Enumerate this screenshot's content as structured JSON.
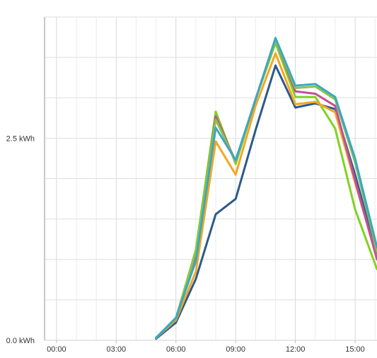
{
  "chart_data": {
    "type": "line",
    "title": "",
    "xlabel": "",
    "ylabel": "",
    "x_unit": "hours",
    "xlim": [
      -0.6,
      16.1
    ],
    "ylim": [
      0,
      4
    ],
    "x_tick_values": [
      0,
      3,
      6,
      9,
      12,
      15
    ],
    "x_tick_labels": [
      "00:00",
      "03:00",
      "06:00",
      "09:00",
      "12:00",
      "15:00"
    ],
    "y_tick_values": [
      0,
      2.5
    ],
    "y_tick_labels": [
      "0.0 kWh",
      "2.5 kWh"
    ],
    "grid": true,
    "legend": "none",
    "x": [
      5,
      6,
      7,
      8,
      9,
      10,
      11,
      12,
      13,
      14,
      15,
      16.1
    ],
    "series": [
      {
        "color": "#2c5a8a",
        "values": [
          0.02,
          0.22,
          0.76,
          1.56,
          1.75,
          2.6,
          3.4,
          2.88,
          2.93,
          2.86,
          2.05,
          1.05
        ]
      },
      {
        "color": "#7ed321",
        "values": [
          0.03,
          0.27,
          1.12,
          2.83,
          2.18,
          2.98,
          3.68,
          3.01,
          3.01,
          2.62,
          1.62,
          0.88
        ]
      },
      {
        "color": "#f5a623",
        "values": [
          0.03,
          0.25,
          0.85,
          2.46,
          2.05,
          2.9,
          3.55,
          2.92,
          2.95,
          2.82,
          1.95,
          1.02
        ]
      },
      {
        "color": "#c0509a",
        "values": [
          0.03,
          0.27,
          1.05,
          2.77,
          2.21,
          2.98,
          3.72,
          3.08,
          3.05,
          2.9,
          1.98,
          1.0
        ]
      },
      {
        "color": "#8bc34a",
        "values": [
          0.03,
          0.27,
          1.1,
          2.73,
          2.21,
          2.98,
          3.72,
          3.12,
          3.14,
          2.98,
          2.2,
          1.1
        ]
      },
      {
        "color": "#3aa8c1",
        "values": [
          0.03,
          0.28,
          0.98,
          2.63,
          2.23,
          2.98,
          3.74,
          3.15,
          3.17,
          3.01,
          2.25,
          1.15
        ]
      }
    ]
  }
}
